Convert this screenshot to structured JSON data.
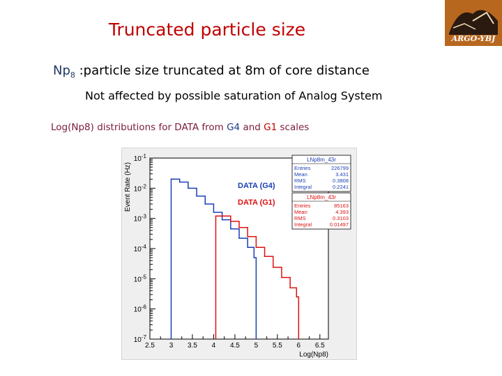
{
  "slide": {
    "title": "Truncated particle size",
    "logo_text": "ARGO-YBJ",
    "line1_prefix": "Np",
    "line1_sub": "8",
    "line1_rest": " :particle size truncated at 8m of core distance",
    "line2": "Not affected by possible saturation of Analog System",
    "line3_a": "Log(Np8) distributions for DATA from ",
    "line3_g4": "G4",
    "line3_and": " and ",
    "line3_g1": "G1",
    "line3_b": " scales"
  },
  "chart_data": {
    "type": "line",
    "xlabel": "Log(Np8)",
    "ylabel": "Event Rate (Hz)",
    "xlim": [
      2.5,
      6.7
    ],
    "ylim": [
      1e-07,
      0.1
    ],
    "yscale": "log",
    "x_ticks": [
      "2.5",
      "3",
      "3.5",
      "4",
      "4.5",
      "5",
      "5.5",
      "6",
      "6.5"
    ],
    "x_tick_values": [
      2.5,
      3,
      3.5,
      4,
      4.5,
      5,
      5.5,
      6,
      6.5
    ],
    "y_tick_exponents": [
      -7,
      -6,
      -5,
      -4,
      -3,
      -2,
      -1
    ],
    "y_tick_base": "10",
    "series": [
      {
        "name": "DATA (G4)",
        "stats_title": "LNp8m_43r",
        "stats": [
          [
            "Entries",
            "226799"
          ],
          [
            "Mean",
            "3.431"
          ],
          [
            "RMS",
            "0.3808"
          ],
          [
            "Integral",
            "0.2241"
          ]
        ],
        "color": "#1a3fb5",
        "x": [
          3.0,
          3.2,
          3.4,
          3.6,
          3.8,
          4.0,
          4.2,
          4.4,
          4.6,
          4.8,
          4.95
        ],
        "y": [
          0.02,
          0.016,
          0.01,
          0.0055,
          0.003,
          0.0016,
          0.0009,
          0.00045,
          0.00022,
          0.00011,
          5e-05
        ]
      },
      {
        "name": "DATA (G1)",
        "stats_title": "LNp8m_43r",
        "stats": [
          [
            "Entries",
            "85163"
          ],
          [
            "Mean",
            "4.393"
          ],
          [
            "RMS",
            "0.3103"
          ],
          [
            "Integral",
            "0.01497"
          ]
        ],
        "color": "#dd1111",
        "x": [
          4.05,
          4.2,
          4.4,
          4.6,
          4.8,
          5.0,
          5.2,
          5.4,
          5.6,
          5.8,
          5.95
        ],
        "y": [
          0.0012,
          0.0012,
          0.0008,
          0.0005,
          0.00025,
          0.00011,
          5.5e-05,
          2.4e-05,
          1.1e-05,
          5e-06,
          2.5e-06
        ]
      }
    ],
    "annotations": [
      "DATA (G4)",
      "DATA (G1)"
    ],
    "legend": "top-right"
  }
}
